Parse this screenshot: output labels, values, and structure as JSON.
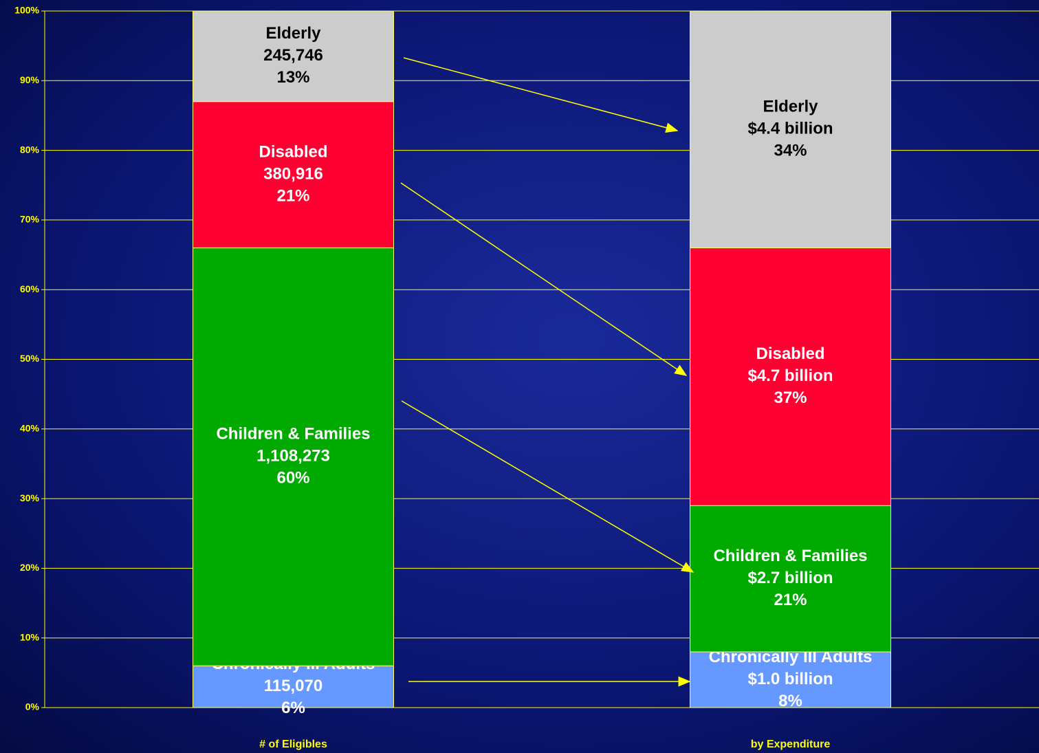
{
  "chart_data": {
    "type": "stacked_bar_100",
    "categories": [
      "# of Eligibles",
      "by Expenditure"
    ],
    "series": [
      {
        "name": "Chronically Ill Adults",
        "color": "#6699ff",
        "label_color": "#ffffff",
        "values": [
          6,
          8
        ],
        "value_labels": [
          "6%",
          "8%"
        ],
        "details": [
          "115,070",
          "$1.0 billion"
        ]
      },
      {
        "name": "Children & Families",
        "color": "#00aa00",
        "label_color": "#ffffff",
        "values": [
          60,
          21
        ],
        "value_labels": [
          "60%",
          "21%"
        ],
        "details": [
          "1,108,273",
          "$2.7 billion"
        ]
      },
      {
        "name": "Disabled",
        "color": "#ff0033",
        "label_color": "#ffffff",
        "values": [
          21,
          37
        ],
        "value_labels": [
          "21%",
          "37%"
        ],
        "details": [
          "380,916",
          "$4.7 billion"
        ]
      },
      {
        "name": "Elderly",
        "color": "#cccccc",
        "label_color": "#000000",
        "values": [
          13,
          34
        ],
        "value_labels": [
          "13%",
          "34%"
        ],
        "details": [
          "245,746",
          "$4.4 billion"
        ]
      }
    ],
    "ylim": [
      0,
      100
    ],
    "yticks": [
      {
        "value": 0,
        "label": "0%"
      },
      {
        "value": 10,
        "label": "10%"
      },
      {
        "value": 20,
        "label": "20%"
      },
      {
        "value": 30,
        "label": "30%"
      },
      {
        "value": 40,
        "label": "40%"
      },
      {
        "value": 50,
        "label": "50%"
      },
      {
        "value": 60,
        "label": "60%"
      },
      {
        "value": 70,
        "label": "70%"
      },
      {
        "value": 80,
        "label": "80%"
      },
      {
        "value": 90,
        "label": "90%"
      },
      {
        "value": 100,
        "label": "100%"
      }
    ],
    "grid": true,
    "grid_color": "#ffff00"
  }
}
